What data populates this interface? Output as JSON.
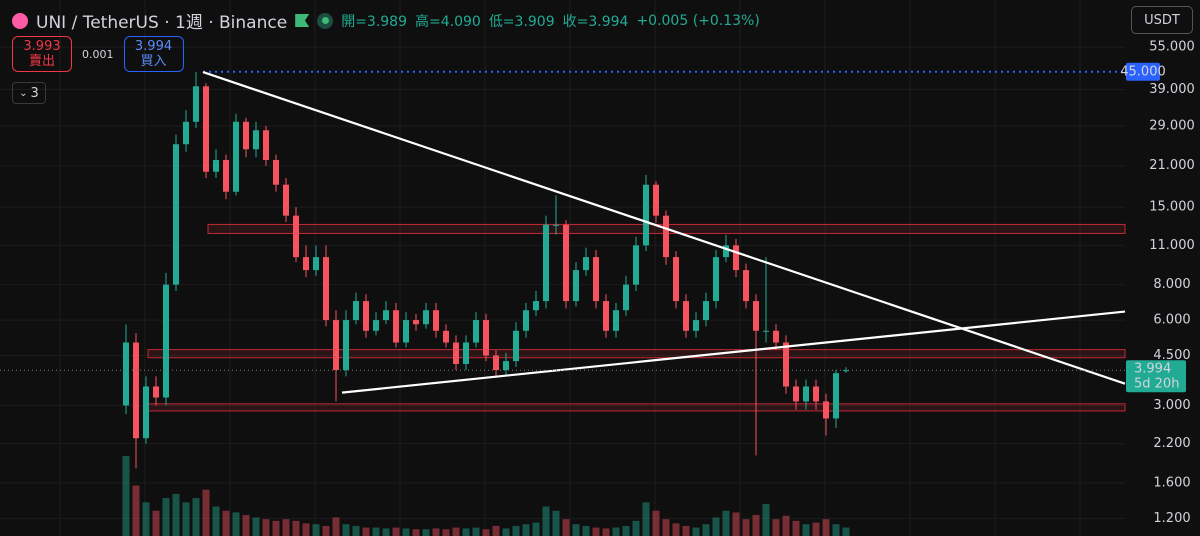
{
  "header": {
    "symbol": "UNI / TetherUS · 1週 · Binance",
    "ohlc": [
      "開=3.989",
      "高=4.090",
      "低=3.909",
      "收=3.994",
      "+0.005 (+0.13%)"
    ]
  },
  "trade": {
    "sell_price": "3.993",
    "sell_label": "賣出",
    "spread": "0.001",
    "buy_price": "3.994",
    "buy_label": "買入"
  },
  "indicator_count": "3",
  "currency": "USDT",
  "chart_data": {
    "type": "candlestick",
    "log_scale": true,
    "up_color": "#22ab94",
    "down_color": "#f7525f",
    "ylim": [
      1.04,
      80.6
    ],
    "yticks": [
      {
        "value": 1.2,
        "label": "1.200"
      },
      {
        "value": 1.6,
        "label": "1.600"
      },
      {
        "value": 2.2,
        "label": "2.200"
      },
      {
        "value": 3,
        "label": "3.000"
      },
      {
        "value": 4.5,
        "label": "4.500"
      },
      {
        "value": 6,
        "label": "6.000"
      },
      {
        "value": 8,
        "label": "8.000"
      },
      {
        "value": 11,
        "label": "11.000"
      },
      {
        "value": 15,
        "label": "15.000"
      },
      {
        "value": 21,
        "label": "21.000"
      },
      {
        "value": 29,
        "label": "29.000"
      },
      {
        "value": 39,
        "label": "39.000"
      },
      {
        "value": 55,
        "label": "55.000"
      }
    ],
    "open": [
      3.0,
      5.0,
      2.3,
      3.5,
      3.2,
      8.0,
      25,
      30,
      40,
      20,
      22,
      17,
      30,
      24,
      28,
      22,
      18,
      14,
      10,
      9,
      10,
      6,
      4.0,
      6,
      7,
      5.5,
      6,
      6.5,
      5,
      6,
      5.8,
      6.5,
      5.5,
      5,
      4.2,
      5,
      6,
      4.5,
      4.0,
      4.3,
      5.5,
      6.5,
      7,
      13,
      13,
      7,
      9,
      10,
      7,
      5.5,
      6.5,
      8,
      11,
      18,
      14,
      10,
      7,
      5.5,
      6,
      7,
      10,
      11,
      9,
      7,
      5.5,
      5.5,
      5,
      3.5,
      3.1,
      3.5,
      3.1,
      2.7,
      3.989
    ],
    "high": [
      5.8,
      5.4,
      3.8,
      3.8,
      8.8,
      27,
      33,
      44.9,
      41,
      24,
      23,
      32,
      31,
      30,
      29,
      23,
      19,
      15,
      11,
      11,
      11,
      6.5,
      6.5,
      7.5,
      7.4,
      6.4,
      7,
      6.9,
      6.4,
      6.3,
      6.9,
      6.9,
      5.8,
      5.3,
      5.3,
      6.4,
      6.3,
      4.7,
      4.6,
      5.9,
      6.9,
      7.6,
      14,
      16.5,
      13.5,
      9.6,
      10.8,
      10.6,
      7.4,
      6.9,
      8.6,
      11.8,
      19.5,
      18.5,
      14.6,
      10.5,
      7.4,
      6.4,
      7.5,
      10.6,
      12,
      11.6,
      9.5,
      7.4,
      10,
      5.8,
      5.3,
      3.7,
      3.7,
      3.7,
      3.3,
      4.0,
      4.09
    ],
    "low": [
      2.8,
      1.8,
      2.2,
      3.0,
      3.0,
      7.6,
      23.5,
      28.5,
      19,
      19,
      16,
      16.5,
      22.5,
      22.5,
      21,
      17,
      13.3,
      9.6,
      8.5,
      8.6,
      5.7,
      3.1,
      3.8,
      5.8,
      5.2,
      5.3,
      5.8,
      4.8,
      4.8,
      5.5,
      5.6,
      5.2,
      4.8,
      4.0,
      4.0,
      4.8,
      4.3,
      3.8,
      3.8,
      4.1,
      5.2,
      6.2,
      6.6,
      12,
      6.6,
      6.7,
      8.6,
      6.6,
      5.2,
      5.2,
      6.2,
      7.6,
      10.5,
      13.2,
      9.4,
      6.6,
      5.2,
      5.2,
      5.7,
      6.6,
      9.6,
      8.5,
      6.6,
      2.0,
      5.0,
      4.7,
      3.3,
      2.9,
      2.9,
      2.9,
      2.35,
      2.5,
      3.909
    ],
    "close": [
      5.0,
      2.3,
      3.5,
      3.2,
      8.0,
      25,
      30,
      40,
      20,
      22,
      17,
      30,
      24,
      28,
      22,
      18,
      14,
      10,
      9,
      10,
      6,
      4.0,
      6,
      7,
      5.5,
      6,
      6.5,
      5,
      6,
      5.8,
      6.5,
      5.5,
      5,
      4.2,
      5,
      6,
      4.5,
      4.0,
      4.3,
      5.5,
      6.5,
      7,
      13,
      13,
      7,
      9,
      10,
      7,
      5.5,
      6.5,
      8,
      11,
      18,
      14,
      10,
      7,
      5.5,
      6,
      7,
      10,
      11,
      9,
      7,
      5.5,
      5.5,
      5,
      3.5,
      3.1,
      3.5,
      3.1,
      2.7,
      3.9,
      3.994
    ],
    "volume": [
      95,
      60,
      40,
      30,
      45,
      50,
      40,
      45,
      55,
      35,
      30,
      28,
      25,
      22,
      20,
      18,
      20,
      18,
      15,
      14,
      12,
      22,
      14,
      12,
      10,
      10,
      9,
      10,
      9,
      8,
      8,
      9,
      8,
      10,
      9,
      10,
      8,
      12,
      9,
      12,
      14,
      16,
      35,
      30,
      20,
      14,
      12,
      10,
      9,
      10,
      12,
      18,
      40,
      30,
      20,
      15,
      12,
      10,
      14,
      22,
      30,
      28,
      20,
      25,
      38,
      20,
      24,
      18,
      14,
      16,
      20,
      14,
      10
    ],
    "price_lines": [
      {
        "value": 45,
        "label": "45.000",
        "color": "#2962ff"
      }
    ],
    "last_price": {
      "value": 3.994,
      "label": "3.994",
      "countdown": "5d 20h"
    },
    "trend_lines": [
      {
        "x": [
          7.7,
          99.9
        ],
        "y": [
          44.9,
          3.58
        ]
      },
      {
        "x": [
          21.6,
          99.9
        ],
        "y": [
          3.33,
          6.43
        ]
      }
    ],
    "zones": [
      {
        "x": 8.2,
        "y": [
          12.12,
          13.04
        ]
      },
      {
        "x": 2.2,
        "y": [
          4.42,
          4.72
        ]
      },
      {
        "x": 2.2,
        "y": [
          2.87,
          3.04
        ]
      }
    ]
  }
}
